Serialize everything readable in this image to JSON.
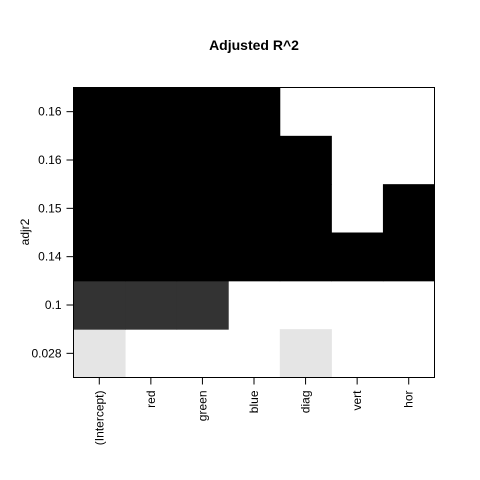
{
  "chart_data": {
    "type": "heatmap",
    "title": "Adjusted R^2",
    "ylabel": "adjr2",
    "xlabel": "",
    "x_categories": [
      "(Intercept)",
      "red",
      "green",
      "blue",
      "diag",
      "vert",
      "hor"
    ],
    "y_tick_labels": [
      "0.028",
      "0.1",
      "0.14",
      "0.15",
      "0.16",
      "0.16"
    ],
    "grid": false,
    "legend": "none",
    "colors": {
      "background": "#ffffff",
      "scale": [
        "#e5e5e5",
        "#333333",
        "#000000"
      ]
    },
    "rows": [
      {
        "adjr2": "0.028",
        "shade": "#e5e5e5",
        "included": [
          true,
          false,
          false,
          false,
          true,
          false,
          false
        ]
      },
      {
        "adjr2": "0.1",
        "shade": "#333333",
        "included": [
          true,
          true,
          true,
          false,
          false,
          false,
          false
        ]
      },
      {
        "adjr2": "0.14",
        "shade": "#000000",
        "included": [
          true,
          true,
          true,
          true,
          true,
          true,
          true
        ]
      },
      {
        "adjr2": "0.15",
        "shade": "#000000",
        "included": [
          true,
          true,
          true,
          true,
          true,
          false,
          true
        ]
      },
      {
        "adjr2": "0.16",
        "shade": "#000000",
        "included": [
          true,
          true,
          true,
          true,
          true,
          false,
          false
        ]
      },
      {
        "adjr2": "0.16",
        "shade": "#000000",
        "included": [
          true,
          true,
          true,
          true,
          false,
          false,
          false
        ]
      }
    ]
  }
}
